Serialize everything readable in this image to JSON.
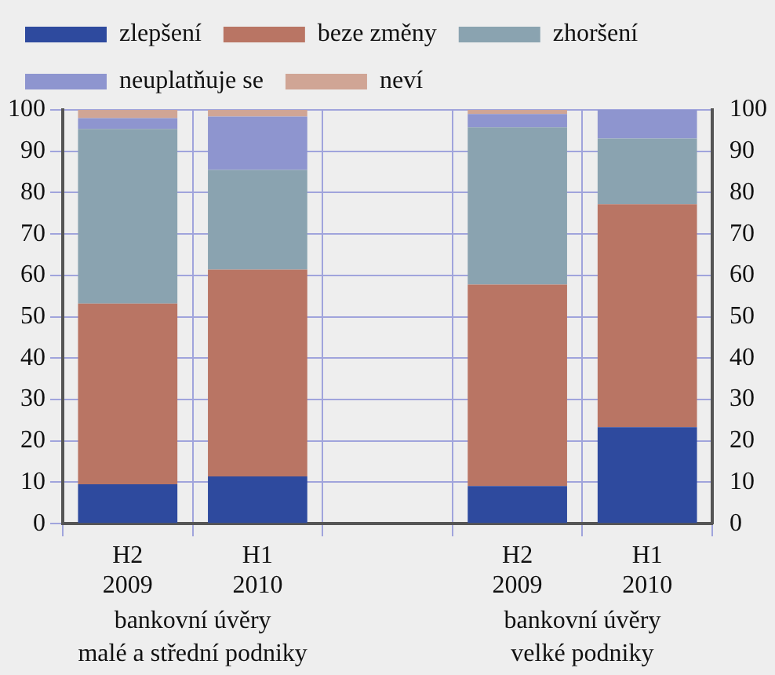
{
  "chart_data": {
    "type": "bar",
    "stacked": true,
    "categories": [
      "H2 2009",
      "H1 2010",
      null,
      "H2 2009",
      "H1 2010"
    ],
    "series": [
      {
        "name": "zlepšení",
        "color": "#2e4a9e",
        "values": [
          9.5,
          11.4,
          null,
          9.1,
          23.3
        ]
      },
      {
        "name": "beze změny",
        "color": "#b97564",
        "values": [
          43.7,
          50.0,
          null,
          48.7,
          53.9
        ]
      },
      {
        "name": "zhoršení",
        "color": "#8aa3b0",
        "values": [
          42.2,
          24.1,
          null,
          38.0,
          15.9
        ]
      },
      {
        "name": "neuplatňuje se",
        "color": "#8e95cf",
        "values": [
          2.6,
          12.9,
          null,
          3.2,
          6.9
        ]
      },
      {
        "name": "neví",
        "color": "#d0a595",
        "values": [
          2.0,
          1.6,
          null,
          1.0,
          0
        ]
      }
    ],
    "ylim": [
      0,
      100
    ],
    "yticks": [
      0,
      10,
      20,
      30,
      40,
      50,
      60,
      70,
      80,
      90,
      100
    ],
    "y2lim": [
      0,
      100
    ],
    "y2ticks": [
      0,
      10,
      20,
      30,
      40,
      50,
      60,
      70,
      80,
      90,
      100
    ],
    "grid": true,
    "legend": "top left",
    "annotations": [
      "bankovní úvěry\nmalé a střední podniky",
      "bankovní úvěry\nvelké podniky"
    ]
  }
}
